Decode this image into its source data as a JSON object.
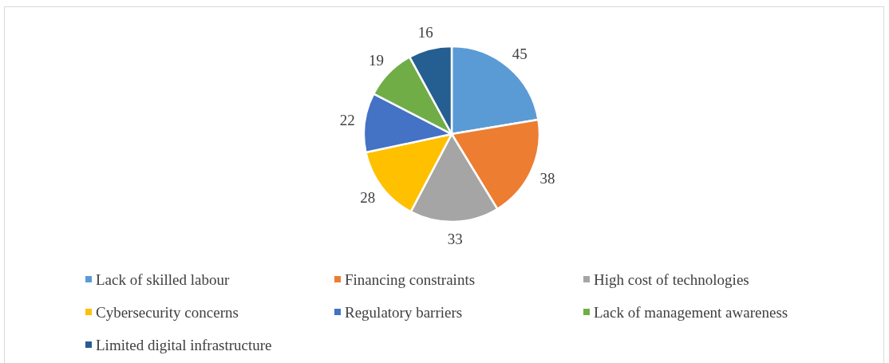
{
  "chart_data": {
    "type": "pie",
    "categories": [
      "Lack of skilled labour",
      "Financing constraints",
      "High cost of technologies",
      "Cybersecurity concerns",
      "Regulatory barriers",
      "Lack of management awareness",
      "Limited digital infrastructure"
    ],
    "values": [
      45,
      38,
      33,
      28,
      22,
      19,
      16
    ],
    "colors": [
      "#5b9bd5",
      "#ed7d31",
      "#a5a5a5",
      "#ffc000",
      "#4472c4",
      "#70ad47",
      "#255e91"
    ],
    "data_labels": true,
    "legend": "bottom"
  }
}
